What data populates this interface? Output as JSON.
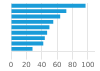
{
  "chart_data": {
    "type": "bar",
    "orientation": "horizontal",
    "categories": [
      null,
      null,
      null,
      null,
      null,
      null,
      null,
      null,
      null
    ],
    "values": [
      97,
      72,
      64,
      55,
      50,
      47,
      44,
      42,
      28
    ],
    "color": "#1a9cd8",
    "xlim": [
      0,
      108
    ],
    "xticks": [
      0,
      20,
      40,
      60,
      80,
      100
    ],
    "grid": true,
    "tick_labels": "x"
  }
}
